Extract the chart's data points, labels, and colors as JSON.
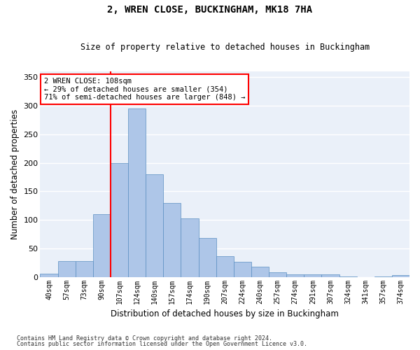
{
  "title1": "2, WREN CLOSE, BUCKINGHAM, MK18 7HA",
  "title2": "Size of property relative to detached houses in Buckingham",
  "xlabel": "Distribution of detached houses by size in Buckingham",
  "ylabel": "Number of detached properties",
  "categories": [
    "40sqm",
    "57sqm",
    "73sqm",
    "90sqm",
    "107sqm",
    "124sqm",
    "140sqm",
    "157sqm",
    "174sqm",
    "190sqm",
    "207sqm",
    "224sqm",
    "240sqm",
    "257sqm",
    "274sqm",
    "291sqm",
    "307sqm",
    "324sqm",
    "341sqm",
    "357sqm",
    "374sqm"
  ],
  "values": [
    6,
    28,
    28,
    110,
    200,
    295,
    180,
    130,
    103,
    68,
    36,
    26,
    18,
    8,
    5,
    4,
    4,
    1,
    0,
    1,
    3
  ],
  "bar_color": "#aec6e8",
  "bar_edge_color": "#5a8fc2",
  "vline_color": "red",
  "vline_index": 4,
  "annotation_text": "2 WREN CLOSE: 108sqm\n← 29% of detached houses are smaller (354)\n71% of semi-detached houses are larger (848) →",
  "annotation_box_color": "white",
  "annotation_box_edge_color": "red",
  "ylim": [
    0,
    360
  ],
  "yticks": [
    0,
    50,
    100,
    150,
    200,
    250,
    300,
    350
  ],
  "bg_color": "#eaf0f9",
  "grid_color": "white",
  "footer1": "Contains HM Land Registry data © Crown copyright and database right 2024.",
  "footer2": "Contains public sector information licensed under the Open Government Licence v3.0."
}
